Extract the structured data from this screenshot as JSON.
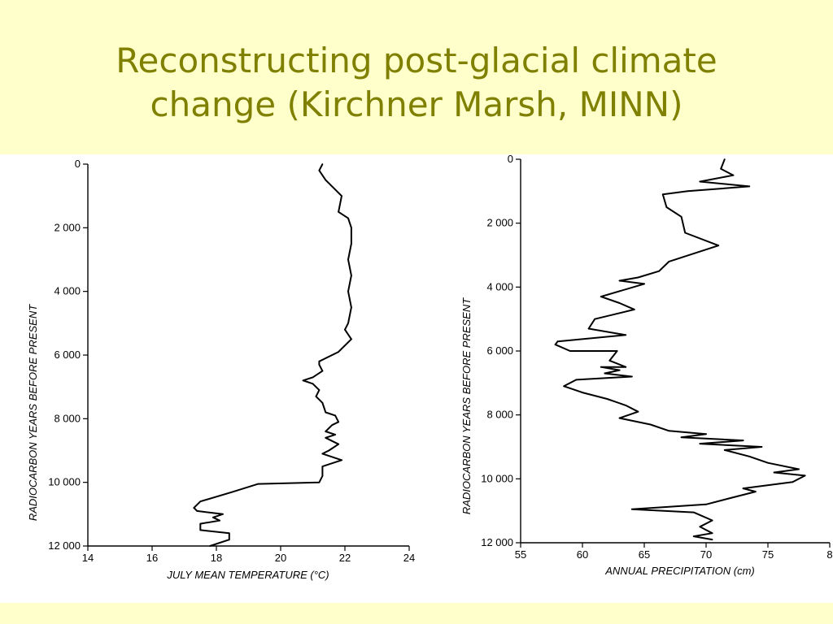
{
  "slide": {
    "title_line1": "Reconstructing post-glacial climate",
    "title_line2": "change (Kirchner Marsh, MINN)",
    "background_color": "#ffffcc",
    "title_color": "#808000"
  },
  "chart_data": [
    {
      "type": "line",
      "xlabel": "JULY MEAN TEMPERATURE (°C)",
      "ylabel": "RADIOCARBON YEARS BEFORE PRESENT",
      "xlim": [
        14,
        24
      ],
      "ylim": [
        0,
        12000
      ],
      "y_inverted": true,
      "x_ticks": [
        "14",
        "16",
        "18",
        "20",
        "22",
        "24"
      ],
      "y_ticks": [
        "0",
        "2 000",
        "4 000",
        "6 000",
        "8 000",
        "10 000",
        "12 000"
      ],
      "series": [
        {
          "x": [
            21.3,
            21.2,
            21.4,
            21.7,
            21.9,
            21.8,
            22.1,
            22.2,
            22.2,
            22.1,
            22.2,
            22.1,
            22.2,
            22.1,
            22.0,
            22.2,
            21.9,
            21.8,
            21.6,
            21.2,
            21.2,
            21.3,
            21.0,
            20.7,
            21.0,
            21.2,
            21.1,
            21.3,
            21.4,
            21.7,
            21.8,
            21.6,
            21.4,
            21.7,
            21.4,
            21.8,
            21.5,
            21.3,
            21.9,
            21.3,
            21.3,
            21.2,
            19.3,
            18.5,
            17.5,
            17.3,
            17.4,
            18.2,
            17.9,
            18.1,
            17.5,
            17.5,
            18.4,
            18.4,
            17.8
          ],
          "y": [
            0,
            200,
            500,
            800,
            1000,
            1500,
            1700,
            2000,
            2500,
            3000,
            3500,
            4000,
            4500,
            5000,
            5200,
            5500,
            5800,
            5900,
            6000,
            6200,
            6300,
            6500,
            6700,
            6800,
            6900,
            7100,
            7300,
            7500,
            7800,
            7900,
            8100,
            8200,
            8400,
            8500,
            8600,
            8800,
            9000,
            9100,
            9300,
            9500,
            9800,
            10000,
            10050,
            10300,
            10600,
            10800,
            10900,
            11000,
            11100,
            11200,
            11300,
            11500,
            11600,
            11800,
            12000
          ]
        }
      ]
    },
    {
      "type": "line",
      "xlabel": "ANNUAL PRECIPITATION (cm)",
      "ylabel": "RADIOCARBON YEARS BEFORE PRESENT",
      "xlim": [
        55,
        80
      ],
      "ylim": [
        0,
        12000
      ],
      "y_inverted": true,
      "x_ticks": [
        "55",
        "60",
        "65",
        "70",
        "75",
        "8"
      ],
      "y_ticks": [
        "0",
        "2 000",
        "4 000",
        "6 000",
        "8 000",
        "10 000",
        "12 000"
      ],
      "series": [
        {
          "x": [
            71.5,
            71.2,
            72.2,
            69.5,
            73.5,
            68.5,
            66.5,
            66.8,
            68.0,
            68.3,
            71.0,
            67.0,
            66.2,
            64.5,
            63.0,
            65.0,
            61.5,
            63.0,
            64.2,
            61.0,
            60.5,
            63.5,
            58.0,
            57.8,
            59.0,
            62.8,
            62.2,
            63.5,
            61.5,
            63.0,
            61.8,
            64.0,
            59.5,
            58.5,
            60.0,
            62.0,
            63.5,
            64.5,
            63.0,
            65.5,
            67.0,
            70.0,
            68.0,
            73.0,
            69.5,
            74.5,
            71.5,
            73.5,
            75.0,
            77.5,
            75.5,
            78.0,
            77.0,
            73.0,
            74.0,
            72.0,
            70.0,
            64.0,
            69.0,
            70.5,
            69.5,
            70.5,
            69.0,
            70.5
          ],
          "y": [
            0,
            300,
            500,
            700,
            850,
            1000,
            1100,
            1500,
            1800,
            2300,
            2700,
            3200,
            3500,
            3700,
            3800,
            3900,
            4300,
            4500,
            4700,
            5000,
            5300,
            5500,
            5700,
            5800,
            6000,
            6000,
            6300,
            6500,
            6500,
            6600,
            6700,
            6800,
            6900,
            7100,
            7300,
            7500,
            7700,
            7900,
            8100,
            8300,
            8500,
            8600,
            8700,
            8800,
            8900,
            9000,
            9100,
            9300,
            9500,
            9700,
            9800,
            9900,
            10100,
            10300,
            10400,
            10600,
            10800,
            10950,
            11050,
            11300,
            11500,
            11700,
            11800,
            11900
          ]
        }
      ]
    }
  ]
}
